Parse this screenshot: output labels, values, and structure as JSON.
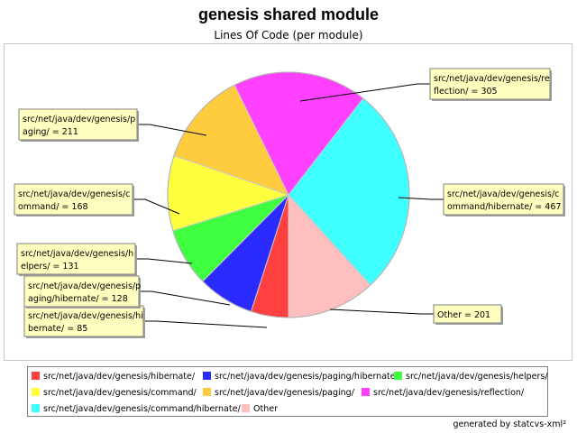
{
  "chart_data": {
    "type": "pie",
    "title": "genesis shared module",
    "subtitle": "Lines Of Code (per module)",
    "slices": [
      {
        "label": "src/net/java/dev/genesis/hibernate/",
        "value": 85,
        "color": "#ff4040",
        "label_lines": [
          "src/net/java/dev/genesis/hi",
          "bernate/ = 85"
        ]
      },
      {
        "label": "src/net/java/dev/genesis/paging/hibernate/",
        "value": 128,
        "color": "#2b2bff",
        "label_lines": [
          "src/net/java/dev/genesis/p",
          "aging/hibernate/ = 128"
        ]
      },
      {
        "label": "src/net/java/dev/genesis/helpers/",
        "value": 131,
        "color": "#40ff40",
        "label_lines": [
          "src/net/java/dev/genesis/h",
          "elpers/ = 131"
        ]
      },
      {
        "label": "src/net/java/dev/genesis/command/",
        "value": 168,
        "color": "#ffff40",
        "label_lines": [
          "src/net/java/dev/genesis/c",
          "ommand/ = 168"
        ]
      },
      {
        "label": "src/net/java/dev/genesis/paging/",
        "value": 211,
        "color": "#ffcc40",
        "label_lines": [
          "src/net/java/dev/genesis/p",
          "aging/ = 211"
        ]
      },
      {
        "label": "src/net/java/dev/genesis/reflection/",
        "value": 305,
        "color": "#ff40ff",
        "label_lines": [
          "src/net/java/dev/genesis/re",
          "flection/ = 305"
        ]
      },
      {
        "label": "src/net/java/dev/genesis/command/hibernate/",
        "value": 467,
        "color": "#40ffff",
        "label_lines": [
          "src/net/java/dev/genesis/c",
          "ommand/hibernate/ = 467"
        ]
      },
      {
        "label": "Other",
        "value": 201,
        "color": "#ffbfbf",
        "label_lines": [
          "Other = 201"
        ]
      }
    ],
    "legend_placement": "bottom",
    "label_box_color": "#ffffc0"
  },
  "footer": "generated by statcvs-xml²"
}
